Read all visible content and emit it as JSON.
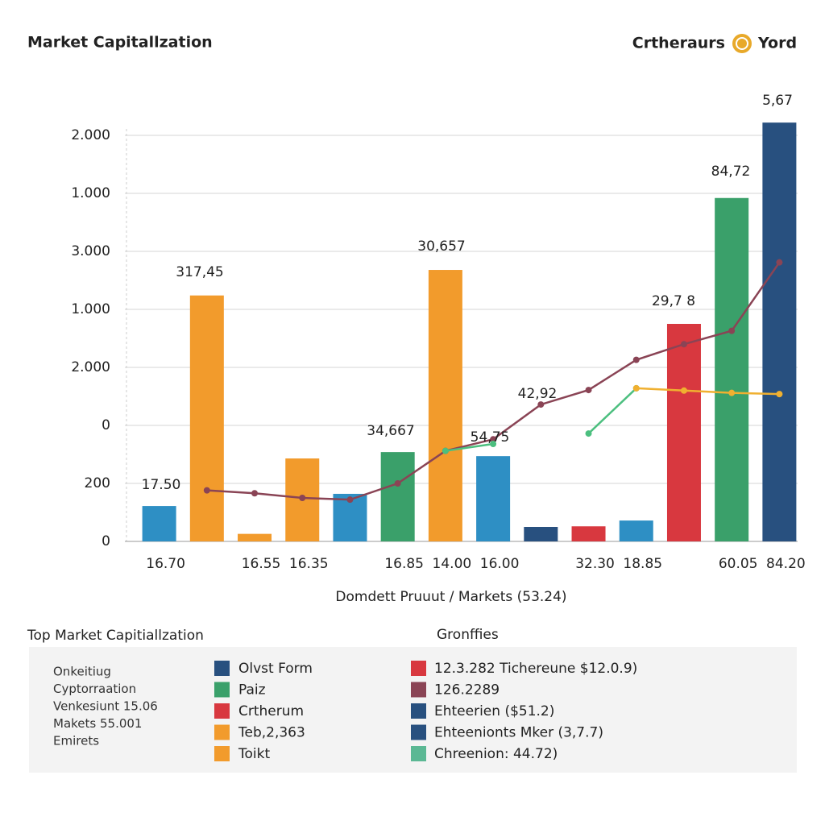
{
  "header": {
    "title": "Market Capitallzation",
    "brand_left": "Crtheraurs",
    "brand_right": "Yord"
  },
  "chart_data": {
    "type": "bar",
    "x_label": "Domdett Pruuut / Markets (53.24)",
    "categories": [
      "16.70",
      null,
      "16.55",
      "16.35",
      null,
      "16.85",
      "14.00",
      "16.00",
      null,
      "32.30",
      "18.85",
      null,
      "60.05",
      "84.20"
    ],
    "ylim": [
      0,
      7.5
    ],
    "yticks": [
      0,
      {
        "value": 1,
        "label": "200"
      },
      {
        "value": 2,
        "label": "0"
      },
      {
        "value": 3,
        "label": "2.000"
      },
      {
        "value": 4,
        "label": "1.000"
      },
      {
        "value": 5,
        "label": "3.000"
      },
      {
        "value": 6,
        "label": "1.000"
      },
      {
        "value": 7,
        "label": "2.000"
      }
    ],
    "grid": true,
    "series": [
      {
        "type": "bar",
        "colors": [
          "#2e8fc4",
          "#f29b2c",
          "#f29b2c",
          "#f29b2c",
          "#2e8fc4",
          "#3aa06a",
          "#f29b2c",
          "#2e8fc4",
          "#28507f",
          "#d8383f",
          "#2e8fc4",
          "#d8383f",
          "#3aa06a",
          "#28507f"
        ],
        "values": [
          0.61,
          4.24,
          0.13,
          1.43,
          0.82,
          1.54,
          4.68,
          1.47,
          0.25,
          0.26,
          0.36,
          3.75,
          5.92,
          7.22
        ]
      },
      {
        "type": "line",
        "color": "#8a4455",
        "values": [
          null,
          0.88,
          0.83,
          0.75,
          0.72,
          1.0,
          1.56,
          1.76,
          2.36,
          2.61,
          3.13,
          3.4,
          3.63,
          4.81
        ]
      },
      {
        "type": "line",
        "color": "#4cbf7f",
        "values": [
          null,
          null,
          null,
          null,
          null,
          null,
          1.56,
          1.68,
          null,
          1.86,
          2.64,
          null,
          null,
          null
        ]
      },
      {
        "type": "line",
        "color": "#f0b030",
        "values": [
          null,
          null,
          null,
          null,
          null,
          null,
          null,
          null,
          null,
          null,
          2.64,
          2.6,
          2.56,
          2.54
        ]
      }
    ],
    "annotations": [
      "17.50",
      "317,45",
      "34,667",
      "30,657",
      "42,92",
      "54,75",
      "29,7 8",
      "84,72",
      "5,67"
    ]
  },
  "panel": {
    "title": "Top Market Capitiallzation",
    "subtitle": "Gronffies",
    "notes": [
      "Onkeitiug",
      "Cyptorraation",
      "Venkesiunt 15.06",
      "Makets 55.001",
      "Emirets"
    ],
    "legend_left": [
      {
        "label": "Olvst Form",
        "color": "#28507f"
      },
      {
        "label": "Paiz",
        "color": "#3aa06a"
      },
      {
        "label": "Crtherum",
        "color": "#d8383f"
      },
      {
        "label": "Teb,2,363",
        "color": "#f29b2c"
      },
      {
        "label": "Toikt",
        "color": "#f29b2c"
      }
    ],
    "legend_right": [
      {
        "label": "12.3.282 Tichereune $12.0.9)",
        "color": "#d8383f"
      },
      {
        "label": "126.2289",
        "color": "#8a4455"
      },
      {
        "label": "Ehteerien ($51.2)",
        "color": "#28507f"
      },
      {
        "label": "Ehteenionts Mker (3,7.7)",
        "color": "#28507f"
      },
      {
        "label": "Chreenion: 44.72)",
        "color": "#5bb894"
      }
    ]
  }
}
